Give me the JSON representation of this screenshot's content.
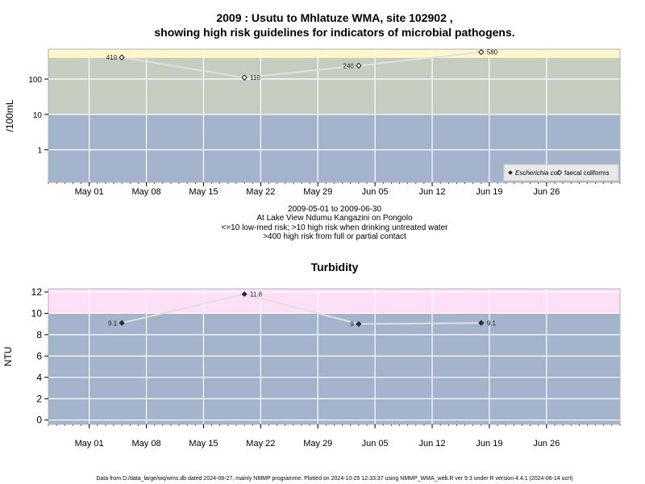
{
  "page": {
    "title_line1": "2009 : Usutu to Mhlatuze WMA, site 102902 ,",
    "title_line2": "showing high risk guidelines for indicators of microbial pathogens.",
    "caption_lines": [
      "2009-05-01 to 2009-06-30",
      "At Lake View Ndumu Kangazini on Pongolo",
      "<=10 low-med risk; >10 high risk when drinking untreated water",
      ">400 high risk from full or partial contact"
    ],
    "footer": "Data from D:/data_large/wq/wms.db dated 2024-08-27, mainly NMMP programme. Plotted on 2024-10-25 12:33:37 using NMMP_WMA_web.R ver 9.3 under R version 4.4.1 (2024-06-14 ucrt)"
  },
  "colors": {
    "zone_low": "#a3b4cc",
    "zone_mid": "#c5cdc0",
    "zone_high_micro": "#fdf8c9",
    "zone_high_turb": "#fde0f8",
    "grid": "#ffffff",
    "line": "#e0e0e0",
    "marker": "#333333"
  },
  "chart_data": [
    {
      "type": "line",
      "title": "",
      "ylabel": "/100mL",
      "yscale": "log",
      "ylim": [
        0.12,
        700
      ],
      "xlim": [
        "2009-04-26",
        "2009-07-05"
      ],
      "x_ticks": [
        "2009-05-01",
        "2009-05-08",
        "2009-05-15",
        "2009-05-22",
        "2009-05-29",
        "2009-06-05",
        "2009-06-12",
        "2009-06-19",
        "2009-06-26"
      ],
      "x_tick_labels": [
        "May 01",
        "May 08",
        "May 15",
        "May 22",
        "May 29",
        "Jun 05",
        "Jun 12",
        "Jun 19",
        "Jun 26"
      ],
      "y_ticks": [
        1,
        10,
        100
      ],
      "y_tick_labels": [
        "1",
        "10",
        "100"
      ],
      "zones": [
        {
          "from": 0.12,
          "to": 10,
          "color": "#a3b4cc"
        },
        {
          "from": 10,
          "to": 400,
          "color": "#c5cdc0"
        },
        {
          "from": 400,
          "to": 700,
          "color": "#fdf8c9"
        }
      ],
      "legend": {
        "position": "bottom-right",
        "entries": [
          {
            "label": "Escherichia coli",
            "marker": "filled-diamond",
            "italic": true
          },
          {
            "label": "faecal coliforms",
            "marker": "open-diamond",
            "italic": false
          }
        ]
      },
      "series": [
        {
          "name": "faecal coliforms",
          "marker": "open-diamond",
          "points": [
            {
              "x": "2009-05-05",
              "y": 410,
              "label": "410"
            },
            {
              "x": "2009-05-20",
              "y": 110,
              "label": "110"
            },
            {
              "x": "2009-06-03",
              "y": 240,
              "label": "240"
            },
            {
              "x": "2009-06-18",
              "y": 580,
              "label": "580"
            }
          ]
        }
      ]
    },
    {
      "type": "line",
      "title": "Turbidity",
      "ylabel": "NTU",
      "yscale": "linear",
      "ylim": [
        -0.4,
        12.3
      ],
      "xlim": [
        "2009-04-26",
        "2009-07-05"
      ],
      "x_ticks": [
        "2009-05-01",
        "2009-05-08",
        "2009-05-15",
        "2009-05-22",
        "2009-05-29",
        "2009-06-05",
        "2009-06-12",
        "2009-06-19",
        "2009-06-26"
      ],
      "x_tick_labels": [
        "May 01",
        "May 08",
        "May 15",
        "May 22",
        "May 29",
        "Jun 05",
        "Jun 12",
        "Jun 19",
        "Jun 26"
      ],
      "y_ticks": [
        0,
        2,
        4,
        6,
        8,
        10,
        12
      ],
      "y_tick_labels": [
        "0",
        "2",
        "4",
        "6",
        "8",
        "10",
        "12"
      ],
      "zones": [
        {
          "from": -0.4,
          "to": 10,
          "color": "#a3b4cc"
        },
        {
          "from": 10,
          "to": 12.3,
          "color": "#fde0f8"
        }
      ],
      "series": [
        {
          "name": "",
          "marker": "filled-diamond",
          "points": [
            {
              "x": "2009-05-05",
              "y": 9.1,
              "label": "9.1"
            },
            {
              "x": "2009-05-20",
              "y": 11.8,
              "label": "11.8"
            },
            {
              "x": "2009-06-03",
              "y": 9,
              "label": "9"
            },
            {
              "x": "2009-06-18",
              "y": 9.1,
              "label": "9.1"
            }
          ]
        }
      ]
    }
  ]
}
